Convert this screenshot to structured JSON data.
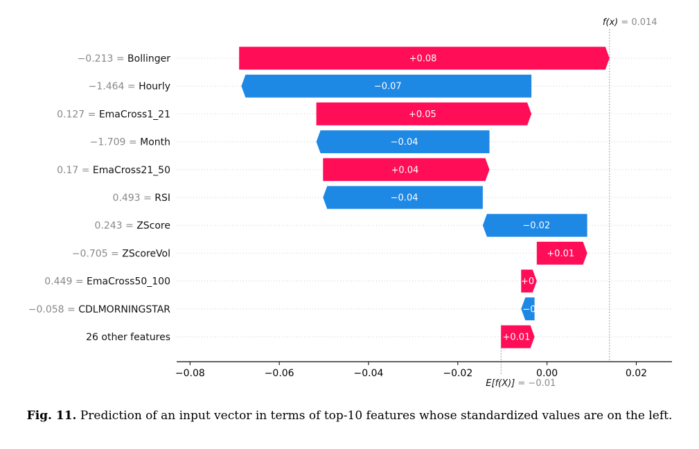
{
  "chart_data": {
    "type": "waterfall",
    "title": "",
    "xlabel": "",
    "ylabel": "",
    "xlim": [
      -0.083,
      0.028
    ],
    "x_ticks": [
      {
        "value": -0.08,
        "label": "−0.08"
      },
      {
        "value": -0.06,
        "label": "−0.06"
      },
      {
        "value": -0.04,
        "label": "−0.04"
      },
      {
        "value": -0.02,
        "label": "−0.02"
      },
      {
        "value": 0.0,
        "label": "0.00"
      },
      {
        "value": 0.02,
        "label": "0.02"
      }
    ],
    "base_value": -0.0103,
    "base_value_text": {
      "prefix": "E[f(X)]",
      "suffix": " = −0.01"
    },
    "fx_value": 0.014,
    "fx_text": {
      "prefix": "f(x)",
      "suffix": " = 0.014"
    },
    "features": [
      {
        "value_text": "−0.213",
        "name": "Bollinger",
        "shap": 0.083,
        "label": "+0.08",
        "start": -0.069
      },
      {
        "value_text": "−1.464",
        "name": "Hourly",
        "shap": -0.065,
        "label": "−0.07",
        "start": -0.0035
      },
      {
        "value_text": "0.127",
        "name": "EmaCross1_21",
        "shap": 0.0482,
        "label": "+0.05",
        "start": -0.0517
      },
      {
        "value_text": "−1.709",
        "name": "Month",
        "shap": -0.0388,
        "label": "−0.04",
        "start": -0.0129
      },
      {
        "value_text": "0.17",
        "name": "EmaCross21_50",
        "shap": 0.0373,
        "label": "+0.04",
        "start": -0.0502
      },
      {
        "value_text": "0.493",
        "name": "RSI",
        "shap": -0.0358,
        "label": "−0.04",
        "start": -0.0144
      },
      {
        "value_text": "0.243",
        "name": "ZScore",
        "shap": -0.0234,
        "label": "−0.02",
        "start": 0.009
      },
      {
        "value_text": "−0.705",
        "name": "ZScoreVol",
        "shap": 0.0113,
        "label": "+0.01",
        "start": -0.0023
      },
      {
        "value_text": "0.449",
        "name": "EmaCross50_100",
        "shap": 0.0035,
        "label": "+0",
        "start": -0.0058
      },
      {
        "value_text": "−0.058",
        "name": "CDLMORNINGSTAR",
        "shap": -0.003,
        "label": "−0",
        "start": -0.0028
      },
      {
        "value_text": "",
        "name": "26 other features",
        "shap": 0.0075,
        "label": "+0.01",
        "start": -0.0103
      }
    ],
    "colors": {
      "positive": "#ff0d57",
      "negative": "#1e88e5",
      "label_text": "#ffffff"
    }
  },
  "caption": {
    "label": "Fig. 11.",
    "text": "Prediction of an input vector in terms of top-10 features whose standardized values are on the left."
  }
}
